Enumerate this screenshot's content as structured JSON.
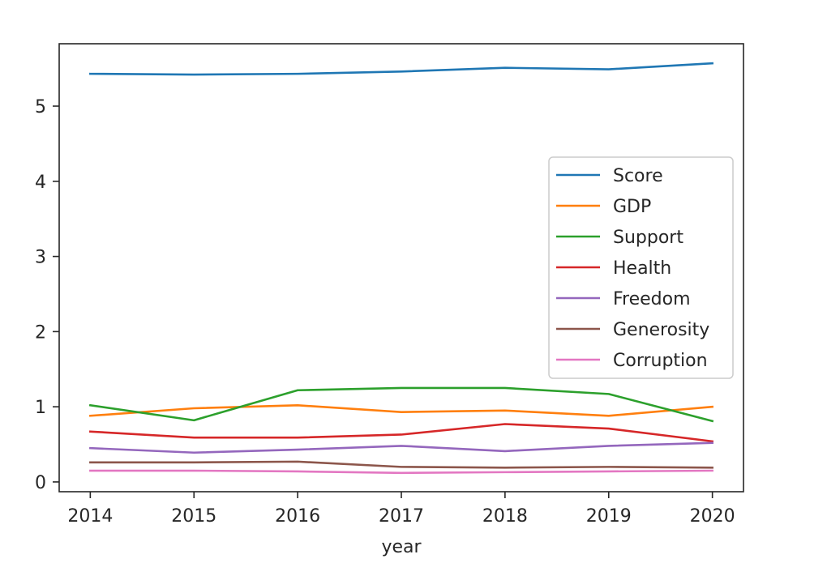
{
  "chart_data": {
    "type": "line",
    "xlabel": "year",
    "ylabel": "",
    "x": [
      2014,
      2015,
      2016,
      2017,
      2018,
      2019,
      2020
    ],
    "xticks": [
      "2014",
      "2015",
      "2016",
      "2017",
      "2018",
      "2019",
      "2020"
    ],
    "yticks": [
      "0",
      "1",
      "2",
      "3",
      "4",
      "5"
    ],
    "xlim": [
      2013.7,
      2020.3
    ],
    "ylim": [
      -0.13,
      5.83
    ],
    "grid": false,
    "legend_position": "center-right",
    "series": [
      {
        "name": "Score",
        "color": "#1f77b4",
        "values": [
          5.43,
          5.42,
          5.43,
          5.46,
          5.51,
          5.49,
          5.57
        ]
      },
      {
        "name": "GDP",
        "color": "#ff7f0e",
        "values": [
          0.88,
          0.98,
          1.02,
          0.93,
          0.95,
          0.88,
          1.0
        ]
      },
      {
        "name": "Support",
        "color": "#2ca02c",
        "values": [
          1.02,
          0.82,
          1.22,
          1.25,
          1.25,
          1.17,
          0.81
        ]
      },
      {
        "name": "Health",
        "color": "#d62728",
        "values": [
          0.67,
          0.59,
          0.59,
          0.63,
          0.77,
          0.71,
          0.54
        ]
      },
      {
        "name": "Freedom",
        "color": "#9467bd",
        "values": [
          0.45,
          0.39,
          0.43,
          0.48,
          0.41,
          0.48,
          0.52
        ]
      },
      {
        "name": "Generosity",
        "color": "#8c564b",
        "values": [
          0.26,
          0.26,
          0.27,
          0.2,
          0.19,
          0.2,
          0.19
        ]
      },
      {
        "name": "Corruption",
        "color": "#e377c2",
        "values": [
          0.15,
          0.15,
          0.14,
          0.12,
          0.13,
          0.14,
          0.15
        ]
      }
    ]
  }
}
